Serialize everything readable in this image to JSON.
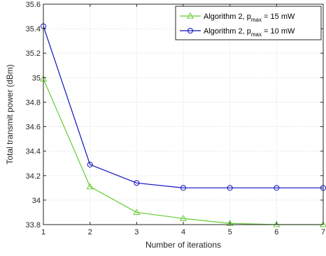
{
  "chart_data": {
    "type": "line",
    "title": "",
    "xlabel": "Number of iterations",
    "ylabel": "Total transmit power (dBm)",
    "xlim": [
      1,
      7
    ],
    "ylim": [
      33.8,
      35.6
    ],
    "grid": true,
    "legend_position": "top-right",
    "xticks": [
      "1",
      "2",
      "3",
      "4",
      "5",
      "6",
      "7"
    ],
    "yticks": [
      "33.8",
      "34",
      "34.2",
      "34.4",
      "34.6",
      "34.8",
      "35",
      "35.2",
      "35.4",
      "35.6"
    ],
    "x": [
      1,
      2,
      3,
      4,
      5,
      6,
      7
    ],
    "series": [
      {
        "legend": {
          "prefix": "Algorithm 2, p",
          "subscript": "max",
          "suffix": " = 15 mW"
        },
        "color": "#66cc33",
        "marker": "triangle",
        "values": [
          34.99,
          34.11,
          33.9,
          33.85,
          33.81,
          33.8,
          33.8
        ]
      },
      {
        "legend": {
          "prefix": "Algorithm 2, p",
          "subscript": "max",
          "suffix": " = 10 mW"
        },
        "color": "#1010c0",
        "marker": "circle",
        "values": [
          35.42,
          34.29,
          34.14,
          34.1,
          34.1,
          34.1,
          34.1
        ]
      }
    ]
  }
}
